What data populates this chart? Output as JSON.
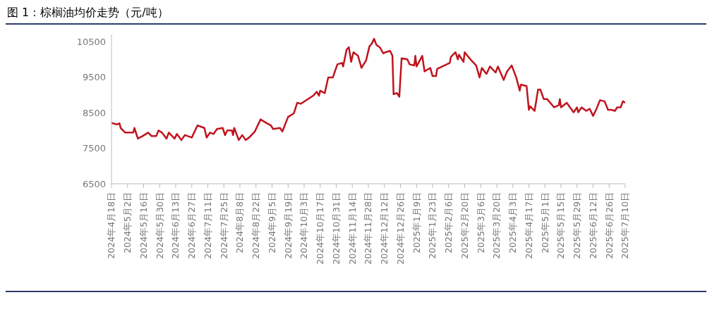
{
  "chart_data": {
    "type": "line",
    "title": "图 1：棕榈油均价走势（元/吨）",
    "x": [
      "2024-04-18",
      "2024-04-23",
      "2024-04-25",
      "2024-04-26",
      "2024-04-30",
      "2024-05-07",
      "2024-05-08",
      "2024-05-11",
      "2024-05-15",
      "2024-05-20",
      "2024-05-23",
      "2024-05-27",
      "2024-05-29",
      "2024-06-01",
      "2024-06-05",
      "2024-06-07",
      "2024-06-12",
      "2024-06-14",
      "2024-06-18",
      "2024-06-21",
      "2024-06-27",
      "2024-07-02",
      "2024-07-08",
      "2024-07-10",
      "2024-07-13",
      "2024-07-16",
      "2024-07-19",
      "2024-07-24",
      "2024-07-26",
      "2024-07-28",
      "2024-08-01",
      "2024-08-02",
      "2024-08-03",
      "2024-08-07",
      "2024-08-10",
      "2024-08-13",
      "2024-08-16",
      "2024-08-21",
      "2024-08-26",
      "2024-08-31",
      "2024-09-04",
      "2024-09-06",
      "2024-09-12",
      "2024-09-14",
      "2024-09-19",
      "2024-09-24",
      "2024-09-27",
      "2024-09-30",
      "2024-10-11",
      "2024-10-14",
      "2024-10-16",
      "2024-10-17",
      "2024-10-21",
      "2024-10-24",
      "2024-10-28",
      "2024-11-01",
      "2024-11-05",
      "2024-11-06",
      "2024-11-09",
      "2024-11-11",
      "2024-11-13",
      "2024-11-15",
      "2024-11-19",
      "2024-11-22",
      "2024-11-26",
      "2024-11-29",
      "2024-12-01",
      "2024-12-03",
      "2024-12-05",
      "2024-12-08",
      "2024-12-11",
      "2024-12-13",
      "2024-12-17",
      "2024-12-19",
      "2024-12-20",
      "2024-12-23",
      "2024-12-25",
      "2024-12-27",
      "2025-01-01",
      "2025-01-03",
      "2025-01-07",
      "2025-01-08",
      "2025-01-09",
      "2025-01-14",
      "2025-01-16",
      "2025-01-21",
      "2025-01-23",
      "2025-01-26",
      "2025-01-27",
      "2025-02-07",
      "2025-02-08",
      "2025-02-12",
      "2025-02-14",
      "2025-02-15",
      "2025-02-19",
      "2025-02-20",
      "2025-02-25",
      "2025-03-02",
      "2025-03-05",
      "2025-03-07",
      "2025-03-11",
      "2025-03-14",
      "2025-03-19",
      "2025-03-21",
      "2025-03-26",
      "2025-03-29",
      "2025-04-02",
      "2025-04-06",
      "2025-04-09",
      "2025-04-10",
      "2025-04-15",
      "2025-04-17",
      "2025-04-18",
      "2025-04-22",
      "2025-04-25",
      "2025-04-27",
      "2025-04-30",
      "2025-05-03",
      "2025-05-09",
      "2025-05-13",
      "2025-05-14",
      "2025-05-15",
      "2025-05-20",
      "2025-05-26",
      "2025-05-29",
      "2025-05-30",
      "2025-06-02",
      "2025-06-06",
      "2025-06-09",
      "2025-06-12",
      "2025-06-15",
      "2025-06-18",
      "2025-06-22",
      "2025-06-25",
      "2025-06-28",
      "2025-07-01",
      "2025-07-03",
      "2025-07-06",
      "2025-07-08",
      "2025-07-10"
    ],
    "series": [
      {
        "color": "#c0141e",
        "values": [
          8210,
          8170,
          8200,
          8070,
          7940,
          7940,
          8070,
          7770,
          7840,
          7940,
          7840,
          7840,
          8000,
          7940,
          7770,
          7940,
          7770,
          7900,
          7730,
          7870,
          7800,
          8140,
          8070,
          7800,
          7940,
          7900,
          8040,
          8070,
          7870,
          8000,
          8000,
          7870,
          8070,
          7730,
          7870,
          7730,
          7800,
          7970,
          8310,
          8210,
          8140,
          8040,
          8070,
          7970,
          8380,
          8480,
          8780,
          8750,
          8980,
          9090,
          8980,
          9120,
          9050,
          9490,
          9490,
          9860,
          9900,
          9800,
          10270,
          10340,
          9930,
          10200,
          10100,
          9760,
          9970,
          10370,
          10440,
          10580,
          10410,
          10340,
          10170,
          10200,
          10240,
          10100,
          9020,
          9050,
          8950,
          10030,
          10000,
          9860,
          9830,
          10100,
          9800,
          10100,
          9660,
          9760,
          9530,
          9530,
          9730,
          9900,
          10070,
          10200,
          10000,
          10130,
          9930,
          10200,
          10000,
          9830,
          9490,
          9760,
          9590,
          9800,
          9630,
          9800,
          9420,
          9660,
          9830,
          9490,
          9120,
          9290,
          9250,
          8580,
          8680,
          8550,
          9150,
          9150,
          8880,
          8880,
          8650,
          8710,
          8880,
          8650,
          8780,
          8510,
          8650,
          8510,
          8650,
          8550,
          8610,
          8410,
          8610,
          8850,
          8820,
          8580,
          8580,
          8550,
          8650,
          8650,
          8820,
          8780
        ]
      }
    ],
    "ylim": [
      6500,
      10700
    ],
    "yticks": [
      6500,
      7500,
      8500,
      9500,
      10500
    ],
    "xlim": [
      "2024-04-18",
      "2025-07-10"
    ],
    "xticks": [
      {
        "value": "2024-04-18",
        "label": "2024年4月18日"
      },
      {
        "value": "2024-05-02",
        "label": "2024年5月2日"
      },
      {
        "value": "2024-05-16",
        "label": "2024年5月16日"
      },
      {
        "value": "2024-05-30",
        "label": "2024年5月30日"
      },
      {
        "value": "2024-06-13",
        "label": "2024年6月13日"
      },
      {
        "value": "2024-06-27",
        "label": "2024年6月27日"
      },
      {
        "value": "2024-07-11",
        "label": "2024年7月11日"
      },
      {
        "value": "2024-07-25",
        "label": "2024年7月25日"
      },
      {
        "value": "2024-08-08",
        "label": "2024年8月8日"
      },
      {
        "value": "2024-08-22",
        "label": "2024年8月22日"
      },
      {
        "value": "2024-09-05",
        "label": "2024年9月5日"
      },
      {
        "value": "2024-09-19",
        "label": "2024年9月19日"
      },
      {
        "value": "2024-10-03",
        "label": "2024年10月3日"
      },
      {
        "value": "2024-10-17",
        "label": "2024年10月17日"
      },
      {
        "value": "2024-10-31",
        "label": "2024年10月31日"
      },
      {
        "value": "2024-11-14",
        "label": "2024年11月14日"
      },
      {
        "value": "2024-11-28",
        "label": "2024年11月28日"
      },
      {
        "value": "2024-12-12",
        "label": "2024年12月12日"
      },
      {
        "value": "2024-12-26",
        "label": "2024年12月26日"
      },
      {
        "value": "2025-01-09",
        "label": "2025年1月9日"
      },
      {
        "value": "2025-01-23",
        "label": "2025年1月23日"
      },
      {
        "value": "2025-02-06",
        "label": "2025年2月6日"
      },
      {
        "value": "2025-02-20",
        "label": "2025年2月20日"
      },
      {
        "value": "2025-03-06",
        "label": "2025年3月6日"
      },
      {
        "value": "2025-03-20",
        "label": "2025年3月20日"
      },
      {
        "value": "2025-04-03",
        "label": "2025年4月3日"
      },
      {
        "value": "2025-04-17",
        "label": "2025年4月17日"
      },
      {
        "value": "2025-05-01",
        "label": "2025年5月1日"
      },
      {
        "value": "2025-05-15",
        "label": "2025年5月15日"
      },
      {
        "value": "2025-05-29",
        "label": "2025年5月29日"
      },
      {
        "value": "2025-06-12",
        "label": "2025年6月12日"
      },
      {
        "value": "2025-06-26",
        "label": "2025年6月26日"
      },
      {
        "value": "2025-07-10",
        "label": "2025年7月10日"
      }
    ]
  }
}
